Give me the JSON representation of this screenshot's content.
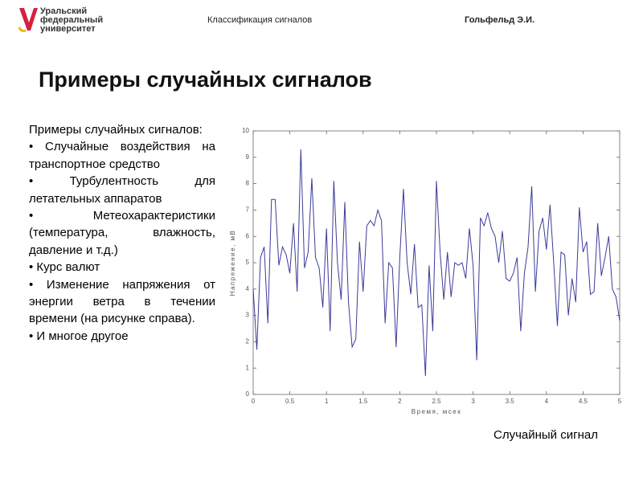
{
  "header": {
    "logo": [
      "Уральский",
      "федеральный",
      "университет"
    ],
    "topic": "Классификация сигналов",
    "author": "Гольфельд Э.И."
  },
  "title": "Примеры случайных сигналов",
  "body": {
    "intro": "Примеры случайных сигналов:",
    "items": [
      "Случайные воздействия на транспортное средство",
      "Турбулентность для летательных аппаратов",
      "Метеохарактеристики (температура, влажность, давление и т.д.)",
      "Курс валют",
      "Изменение напряжения от энергии ветра в течении времени (на рисунке справа).",
      "И многое другое"
    ]
  },
  "chart_data": {
    "type": "line",
    "xlabel": "Время, мсек",
    "ylabel": "Напряжение, мВ",
    "color": "#3b3b9a",
    "x": [
      0,
      0.05,
      0.1,
      0.15,
      0.2,
      0.25,
      0.3,
      0.35,
      0.4,
      0.45,
      0.5,
      0.55,
      0.6,
      0.65,
      0.7,
      0.75,
      0.8,
      0.85,
      0.9,
      0.95,
      1,
      1.05,
      1.1,
      1.15,
      1.2,
      1.25,
      1.3,
      1.35,
      1.4,
      1.45,
      1.5,
      1.55,
      1.6,
      1.65,
      1.7,
      1.75,
      1.8,
      1.85,
      1.9,
      1.95,
      2,
      2.05,
      2.1,
      2.15,
      2.2,
      2.25,
      2.3,
      2.35,
      2.4,
      2.45,
      2.5,
      2.55,
      2.6,
      2.65,
      2.7,
      2.75,
      2.8,
      2.85,
      2.9,
      2.95,
      3,
      3.05,
      3.1,
      3.15,
      3.2,
      3.25,
      3.3,
      3.35,
      3.4,
      3.45,
      3.5,
      3.55,
      3.6,
      3.65,
      3.7,
      3.75,
      3.8,
      3.85,
      3.9,
      3.95,
      4,
      4.05,
      4.1,
      4.15,
      4.2,
      4.25,
      4.3,
      4.35,
      4.4,
      4.45,
      4.5,
      4.55,
      4.6,
      4.65,
      4.7,
      4.75,
      4.8,
      4.85,
      4.9,
      4.95,
      5
    ],
    "values": [
      4.0,
      1.7,
      5.2,
      5.6,
      2.7,
      7.4,
      7.4,
      4.9,
      5.6,
      5.3,
      4.6,
      6.5,
      3.9,
      9.3,
      4.8,
      5.4,
      8.2,
      5.2,
      4.8,
      3.3,
      6.3,
      2.4,
      8.1,
      5.0,
      3.6,
      7.3,
      3.5,
      1.8,
      2.1,
      5.8,
      3.9,
      6.4,
      6.6,
      6.4,
      7.0,
      6.6,
      2.7,
      5.0,
      4.8,
      1.8,
      5.2,
      7.8,
      5.0,
      3.8,
      5.7,
      3.3,
      3.4,
      0.7,
      4.9,
      2.4,
      8.1,
      5.4,
      3.6,
      5.4,
      3.7,
      5.0,
      4.9,
      5.0,
      4.4,
      6.3,
      4.9,
      1.3,
      6.7,
      6.4,
      6.9,
      6.3,
      6.0,
      5.0,
      6.2,
      4.4,
      4.3,
      4.6,
      5.2,
      2.4,
      4.6,
      5.6,
      7.9,
      3.9,
      6.2,
      6.7,
      5.5,
      7.2,
      5.0,
      2.6,
      5.4,
      5.3,
      3.0,
      4.4,
      3.5,
      7.1,
      5.4,
      5.8,
      3.8,
      3.9,
      6.5,
      4.5,
      5.2,
      6.0,
      4.0,
      3.7,
      2.8
    ],
    "xlim": [
      0,
      5
    ],
    "ylim": [
      0,
      10
    ],
    "xticks": [
      0,
      0.5,
      1,
      1.5,
      2,
      2.5,
      3,
      3.5,
      4,
      4.5,
      5
    ],
    "yticks": [
      0,
      1,
      2,
      3,
      4,
      5,
      6,
      7,
      8,
      9,
      10
    ]
  },
  "caption": "Случайный сигнал"
}
